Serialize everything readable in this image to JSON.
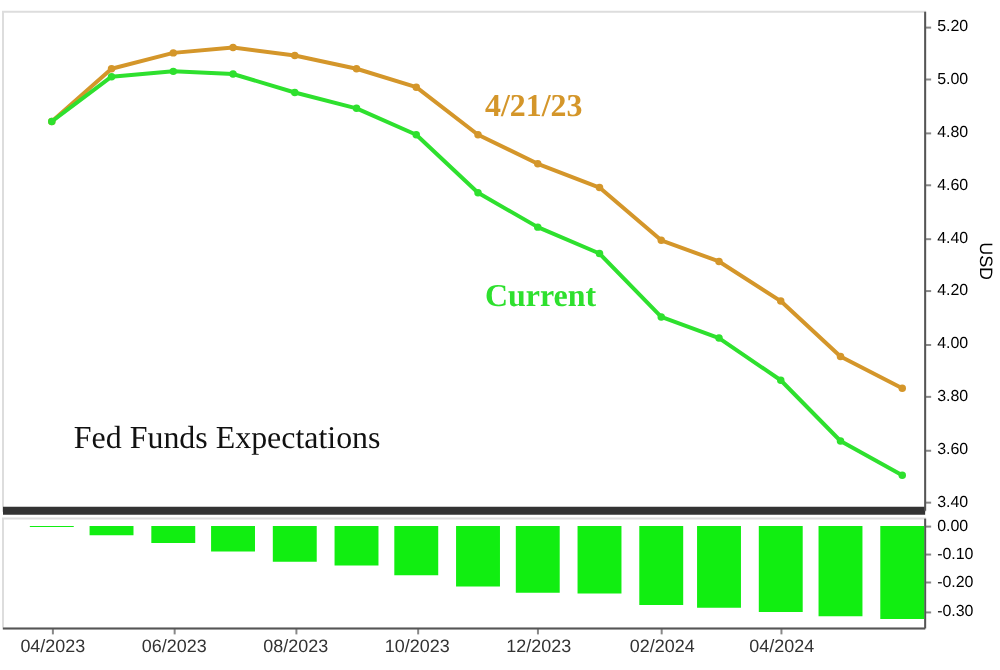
{
  "chart_data": [
    {
      "type": "line",
      "annotations": [
        "Fed Funds Expectations"
      ],
      "ylabel": "USD",
      "x": [
        "2023-04",
        "2023-05",
        "2023-06",
        "2023-07",
        "2023-08",
        "2023-09",
        "2023-10",
        "2023-11",
        "2023-12",
        "2024-01",
        "2024-02",
        "2024-03",
        "2024-04",
        "2024-05",
        "2024-06"
      ],
      "xlim": [
        "2023-03-07",
        "2024-06-12"
      ],
      "series": [
        {
          "name": "4/21/23",
          "color": "#d4962a",
          "values": [
            4.84,
            5.04,
            5.1,
            5.12,
            5.09,
            5.04,
            4.97,
            4.79,
            4.68,
            4.59,
            4.39,
            4.31,
            4.16,
            3.95,
            3.83
          ]
        },
        {
          "name": "Current",
          "color": "#2ee02e",
          "values": [
            4.84,
            5.01,
            5.03,
            5.02,
            4.95,
            4.89,
            4.79,
            4.57,
            4.44,
            4.34,
            4.1,
            4.02,
            3.86,
            3.63,
            3.5
          ]
        }
      ],
      "ylim": [
        3.37,
        5.26
      ],
      "yticks": [
        {
          "value": 3.4,
          "label": "3.40"
        },
        {
          "value": 3.6,
          "label": "3.60"
        },
        {
          "value": 3.8,
          "label": "3.80"
        },
        {
          "value": 4.0,
          "label": "4.00"
        },
        {
          "value": 4.2,
          "label": "4.20"
        },
        {
          "value": 4.4,
          "label": "4.40"
        },
        {
          "value": 4.6,
          "label": "4.60"
        },
        {
          "value": 4.8,
          "label": "4.80"
        },
        {
          "value": 5.0,
          "label": "5.00"
        },
        {
          "value": 5.2,
          "label": "5.20"
        }
      ],
      "marker": "circle",
      "line_style": "solid",
      "grid": false,
      "legend": false,
      "tick_labels": "y"
    },
    {
      "type": "bar",
      "x": [
        "2023-04",
        "2023-05",
        "2023-06",
        "2023-07",
        "2023-08",
        "2023-09",
        "2023-10",
        "2023-11",
        "2023-12",
        "2024-01",
        "2024-02",
        "2024-03",
        "2024-04",
        "2024-05",
        "2024-06"
      ],
      "xlim": [
        "2023-03-07",
        "2024-06-12"
      ],
      "xticks": [
        {
          "value": "2023-04",
          "label": "04/2023"
        },
        {
          "value": "2023-06",
          "label": "06/2023"
        },
        {
          "value": "2023-08",
          "label": "08/2023"
        },
        {
          "value": "2023-10",
          "label": "10/2023"
        },
        {
          "value": "2023-12",
          "label": "12/2023"
        },
        {
          "value": "2024-02",
          "label": "02/2024"
        },
        {
          "value": "2024-04",
          "label": "04/2024"
        }
      ],
      "series": [
        {
          "color": "#11ee11",
          "values": [
            -0.003,
            -0.033,
            -0.06,
            -0.09,
            -0.127,
            -0.14,
            -0.175,
            -0.215,
            -0.237,
            -0.24,
            -0.28,
            -0.29,
            -0.305,
            -0.32,
            -0.33
          ]
        }
      ],
      "ylim": [
        -0.36,
        0.03
      ],
      "yticks": [
        {
          "value": 0,
          "label": "0.00"
        },
        {
          "value": -0.1,
          "label": "-0.10"
        },
        {
          "value": -0.2,
          "label": "-0.20"
        },
        {
          "value": -0.3,
          "label": "-0.30"
        }
      ],
      "grid": false
    }
  ]
}
